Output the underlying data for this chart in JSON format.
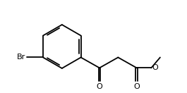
{
  "bg_color": "#ffffff",
  "line_color": "#000000",
  "line_width": 1.3,
  "text_color": "#000000",
  "br_label": "Br",
  "o_label1": "O",
  "o_label2": "O",
  "o_label3": "O",
  "font_size": 7.5,
  "xlim": [
    -1.0,
    10.5
  ],
  "ylim": [
    -1.5,
    3.5
  ]
}
